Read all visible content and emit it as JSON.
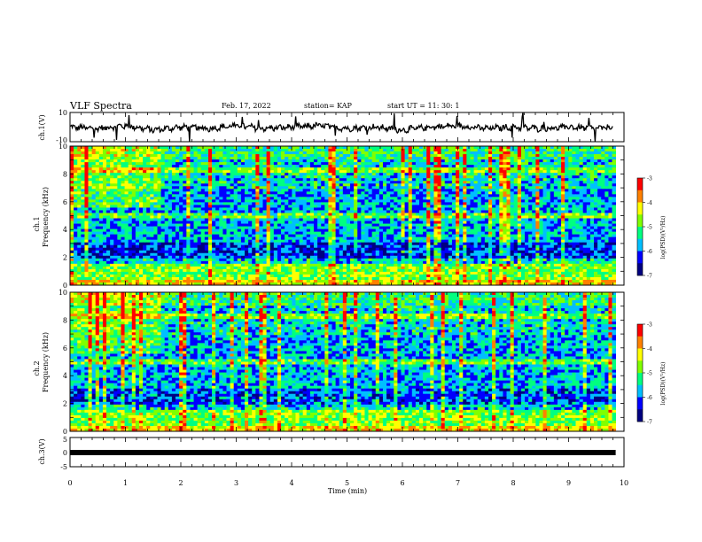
{
  "header": {
    "title": "VLF Spectra",
    "date": "Feb. 17, 2022",
    "station": "station= KAP",
    "start": "start  UT =   11: 30: 1"
  },
  "colors": {
    "frame": "#000000",
    "background": "#ffffff",
    "colormap": [
      "#000080",
      "#0000ff",
      "#00bfff",
      "#00ff80",
      "#80ff00",
      "#ffff00",
      "#ff8000",
      "#ff0000"
    ]
  },
  "chart_data": [
    {
      "type": "line",
      "panel": "ch1-waveform",
      "ylabel": "ch.1(V)",
      "ylim": [
        -10,
        10
      ],
      "yticks": [
        "10",
        "-10"
      ],
      "xlim": [
        0,
        10
      ],
      "description_series": "voltage waveform oscillating roughly between -4 and 3 V",
      "x": [
        0,
        0.5,
        1,
        1.5,
        2,
        2.5,
        3,
        3.5,
        4,
        4.5,
        5,
        5.5,
        6,
        6.5,
        7,
        7.5,
        8,
        8.5,
        9,
        9.5,
        9.8
      ],
      "y": [
        0,
        -1,
        1,
        -2,
        0,
        -1,
        1,
        -1,
        0,
        1,
        -1,
        0,
        -2,
        0,
        1,
        -1,
        0,
        -1,
        0,
        -1,
        0
      ]
    },
    {
      "type": "heatmap",
      "panel": "ch1-spectrogram",
      "ylabel": "ch.1\nFrequency (kHz)",
      "ylim": [
        0,
        10
      ],
      "yticks": [
        "0",
        "2",
        "4",
        "6",
        "8",
        "10"
      ],
      "xlim": [
        0,
        9.85
      ],
      "colorbar": {
        "label": "log(PSD)(V²/Hz)",
        "range": [
          -7,
          -3
        ],
        "ticks": [
          "-3",
          "-4",
          "-5",
          "-6",
          "-7"
        ]
      }
    },
    {
      "type": "heatmap",
      "panel": "ch2-spectrogram",
      "ylabel": "ch.2\nFrequency (kHz)",
      "ylim": [
        0,
        10
      ],
      "yticks": [
        "0",
        "2",
        "4",
        "6",
        "8",
        "10"
      ],
      "xlim": [
        0,
        9.85
      ],
      "colorbar": {
        "label": "log(PSD)(V²/Hz)",
        "range": [
          -7,
          -3
        ],
        "ticks": [
          "-3",
          "-4",
          "-5",
          "-6",
          "-7"
        ]
      }
    },
    {
      "type": "line",
      "panel": "ch3-waveform",
      "ylabel": "ch.3(V)",
      "ylim": [
        -5,
        5
      ],
      "yticks": [
        "5",
        "0",
        "-5"
      ],
      "xlim": [
        0,
        10
      ],
      "x": [
        0,
        9.85
      ],
      "y": [
        0,
        0
      ]
    }
  ],
  "xaxis": {
    "label": "Time  (min)",
    "ticks": [
      "0",
      "1",
      "2",
      "3",
      "4",
      "5",
      "6",
      "7",
      "8",
      "9",
      "10"
    ],
    "range": [
      0,
      10
    ]
  }
}
